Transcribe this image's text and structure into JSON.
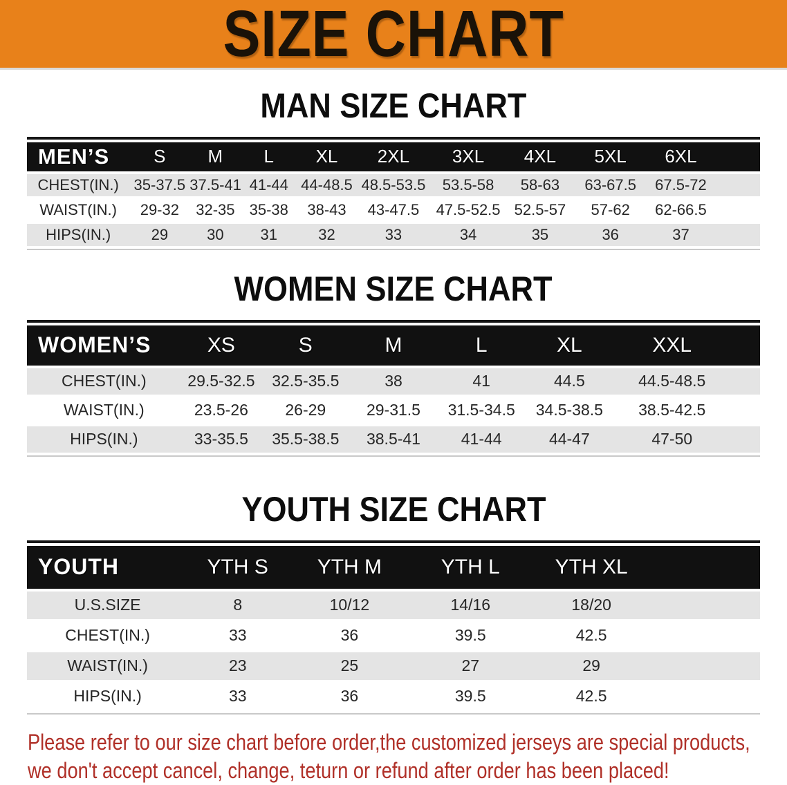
{
  "banner": {
    "title": "SIZE CHART"
  },
  "colors": {
    "banner_bg": "#E8811A",
    "banner_text": "#1A1208",
    "table_header_bar": "#111111",
    "row_gray": "#E4E4E4",
    "footer_text": "#B03028"
  },
  "chart_data": [
    {
      "id": "men",
      "type": "table",
      "title": "MAN SIZE CHART",
      "header": [
        "MEN’S",
        "S",
        "M",
        "L",
        "XL",
        "2XL",
        "3XL",
        "4XL",
        "5XL",
        "6XL"
      ],
      "rows": [
        {
          "label": "CHEST(IN.)",
          "values": [
            "35-37.5",
            "37.5-41",
            "41-44",
            "44-48.5",
            "48.5-53.5",
            "53.5-58",
            "58-63",
            "63-67.5",
            "67.5-72"
          ]
        },
        {
          "label": "WAIST(IN.)",
          "values": [
            "29-32",
            "32-35",
            "35-38",
            "38-43",
            "43-47.5",
            "47.5-52.5",
            "52.5-57",
            "57-62",
            "62-66.5"
          ]
        },
        {
          "label": "HIPS(IN.)",
          "values": [
            "29",
            "30",
            "31",
            "32",
            "33",
            "34",
            "35",
            "36",
            "37"
          ]
        }
      ]
    },
    {
      "id": "women",
      "type": "table",
      "title": "WOMEN SIZE CHART",
      "header": [
        "WOMEN’S",
        "XS",
        "S",
        "M",
        "L",
        "XL",
        "XXL"
      ],
      "rows": [
        {
          "label": "CHEST(IN.)",
          "values": [
            "29.5-32.5",
            "32.5-35.5",
            "38",
            "41",
            "44.5",
            "44.5-48.5"
          ]
        },
        {
          "label": "WAIST(IN.)",
          "values": [
            "23.5-26",
            "26-29",
            "29-31.5",
            "31.5-34.5",
            "34.5-38.5",
            "38.5-42.5"
          ]
        },
        {
          "label": "HIPS(IN.)",
          "values": [
            "33-35.5",
            "35.5-38.5",
            "38.5-41",
            "41-44",
            "44-47",
            "47-50"
          ]
        }
      ]
    },
    {
      "id": "youth",
      "type": "table",
      "title": "YOUTH SIZE CHART",
      "header": [
        "YOUTH",
        "YTH S",
        "YTH M",
        "YTH L",
        "YTH XL"
      ],
      "rows": [
        {
          "label": "U.S.SIZE",
          "values": [
            "8",
            "10/12",
            "14/16",
            "18/20"
          ]
        },
        {
          "label": "CHEST(IN.)",
          "values": [
            "33",
            "36",
            "39.5",
            "42.5"
          ]
        },
        {
          "label": "WAIST(IN.)",
          "values": [
            "23",
            "25",
            "27",
            "29"
          ]
        },
        {
          "label": "HIPS(IN.)",
          "values": [
            "33",
            "36",
            "39.5",
            "42.5"
          ]
        }
      ]
    }
  ],
  "footer": {
    "line1": "Please refer to our size chart before order,the customized jerseys are special products,",
    "line2": "we don't accept cancel, change, teturn or refund after order has been placed!"
  }
}
